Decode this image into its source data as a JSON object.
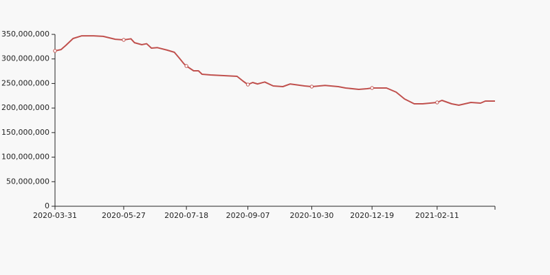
{
  "chart_data": {
    "type": "line",
    "x": [
      "2020-03-31",
      "2020-04-05",
      "2020-04-09",
      "2020-04-15",
      "2020-04-22",
      "2020-05-02",
      "2020-05-10",
      "2020-05-20",
      "2020-05-27",
      "2020-06-02",
      "2020-06-05",
      "2020-06-11",
      "2020-06-15",
      "2020-06-19",
      "2020-06-24",
      "2020-07-02",
      "2020-07-08",
      "2020-07-12",
      "2020-07-16",
      "2020-07-18",
      "2020-07-24",
      "2020-07-28",
      "2020-07-31",
      "2020-08-07",
      "2020-08-18",
      "2020-08-29",
      "2020-09-03",
      "2020-09-07",
      "2020-09-11",
      "2020-09-15",
      "2020-09-21",
      "2020-09-28",
      "2020-10-06",
      "2020-10-12",
      "2020-10-24",
      "2020-10-30",
      "2020-11-10",
      "2020-11-21",
      "2020-11-27",
      "2020-12-08",
      "2020-12-15",
      "2020-12-19",
      "2020-12-31",
      "2021-01-08",
      "2021-01-15",
      "2021-01-23",
      "2021-01-30",
      "2021-02-11",
      "2021-02-15",
      "2021-02-23",
      "2021-03-01",
      "2021-03-11",
      "2021-03-19",
      "2021-03-23",
      "2021-03-31"
    ],
    "series": [
      {
        "color": "#c0504d",
        "values": [
          316400000,
          319000000,
          327600000,
          341600000,
          347000000,
          347000000,
          346000000,
          340000000,
          338800000,
          341000000,
          333000000,
          329000000,
          331000000,
          322000000,
          323000000,
          318000000,
          313600000,
          302000000,
          290000000,
          285600000,
          275800000,
          275800000,
          268800000,
          267400000,
          266000000,
          264600000,
          254800000,
          247800000,
          252000000,
          249000000,
          253000000,
          245000000,
          243600000,
          249000000,
          245000000,
          243600000,
          246000000,
          243600000,
          240800000,
          238000000,
          239400000,
          240800000,
          240800000,
          232400000,
          218400000,
          208600000,
          208600000,
          211400000,
          215600000,
          208600000,
          205800000,
          211400000,
          210000000,
          214200000,
          214200000
        ]
      }
    ],
    "xlim": [
      "2020-03-31",
      "2021-03-31"
    ],
    "xticks": [
      "2020-03-31",
      "2020-05-27",
      "2020-07-18",
      "2020-09-07",
      "2020-10-30",
      "2020-12-19",
      "2021-02-11"
    ],
    "ylim": [
      0,
      350000000
    ],
    "yticks": [
      0,
      {
        "value": 50000000,
        "label": "50,000,000"
      },
      {
        "value": 100000000,
        "label": "100,000,000"
      },
      {
        "value": 150000000,
        "label": "150,000,000"
      },
      {
        "value": 200000000,
        "label": "200,000,000"
      },
      {
        "value": 250000000,
        "label": "250,000,000"
      },
      {
        "value": 300000000,
        "label": "300,000,000"
      },
      {
        "value": 350000000,
        "label": "350,000,000"
      }
    ]
  }
}
